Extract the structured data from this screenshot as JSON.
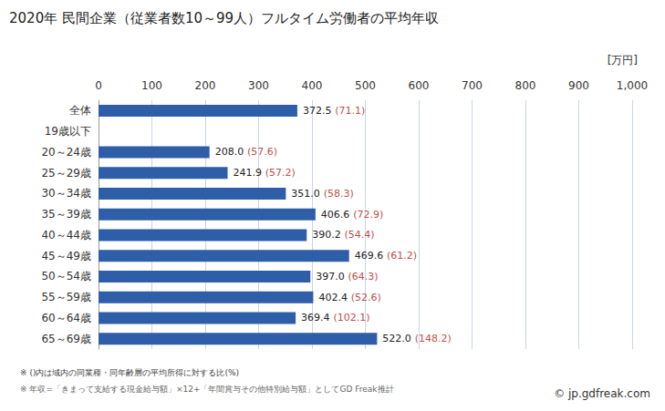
{
  "chart_data": {
    "type": "bar",
    "title": "2020年 民間企業（従業者数10～99人）フルタイム労働者の平均年収",
    "xlabel": "[万円]",
    "categories": [
      "全体",
      "19歳以下",
      "20～24歳",
      "25～29歳",
      "30～34歳",
      "35～39歳",
      "40～44歳",
      "45～49歳",
      "50～54歳",
      "55～59歳",
      "60～64歳",
      "65～69歳"
    ],
    "values": [
      372.5,
      null,
      208.0,
      241.9,
      351.0,
      406.6,
      390.2,
      469.6,
      397.0,
      402.4,
      369.4,
      522.0
    ],
    "value_labels": [
      "372.5",
      null,
      "208.0",
      "241.9",
      "351.0",
      "406.6",
      "390.2",
      "469.6",
      "397.0",
      "402.4",
      "369.4",
      "522.0"
    ],
    "ratios": [
      71.1,
      null,
      57.6,
      57.2,
      58.3,
      72.9,
      54.4,
      61.2,
      64.3,
      52.6,
      102.1,
      148.2
    ],
    "ratio_labels": [
      "(71.1)",
      null,
      "(57.6)",
      "(57.2)",
      "(58.3)",
      "(72.9)",
      "(54.4)",
      "(61.2)",
      "(64.3)",
      "(52.6)",
      "(102.1)",
      "(148.2)"
    ],
    "color": "#2f5ea8",
    "xlim": [
      0,
      1000
    ],
    "xticks": [
      0,
      100,
      200,
      300,
      400,
      500,
      600,
      700,
      800,
      900,
      1000
    ],
    "orientation": "horizontal",
    "grid": true,
    "data_labels": true,
    "annotations": [
      "※ ()内は域内の同業種・同年齢層の平均所得に対する比(%)",
      "※ 年収=「きまって支給する現金給与額」×12+「年間賞与その他特別給与額」としてGD Freak推計",
      "© jp.gdfreak.com"
    ]
  }
}
